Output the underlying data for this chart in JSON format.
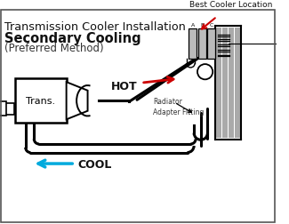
{
  "title_line1": "Transmission Cooler Installation",
  "title_line2": "Secondary Cooling",
  "title_line3": "(Preferred Method)",
  "label_trans": "Trans.",
  "label_hot": "HOT",
  "label_cool": "COOL",
  "label_radiator": "Radiator\nAdapter Fitting",
  "label_best_cooler": "Best Cooler Location",
  "bg_color": "#ffffff",
  "line_color": "#000000",
  "hot_arrow_color": "#cc0000",
  "cool_arrow_color": "#00aadd",
  "fin_color": "#aaaaaa",
  "border_color": "#555555"
}
